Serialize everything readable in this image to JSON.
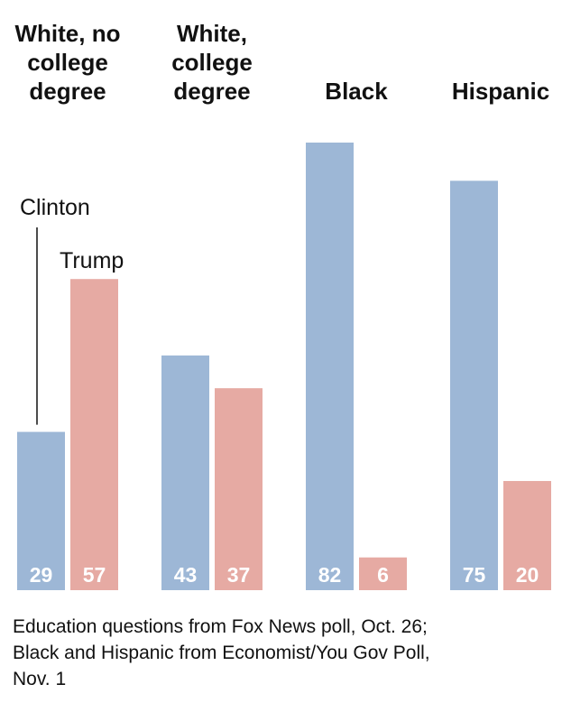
{
  "chart_data": {
    "type": "bar",
    "categories": [
      [
        "White, no",
        "college",
        "degree"
      ],
      [
        "White,",
        "college",
        "degree"
      ],
      [
        "Black"
      ],
      [
        "Hispanic"
      ]
    ],
    "series": [
      {
        "name": "Clinton",
        "color": "#9db7d6",
        "values": [
          29,
          43,
          82,
          75
        ]
      },
      {
        "name": "Trump",
        "color": "#e6aaa3",
        "values": [
          57,
          37,
          6,
          20
        ]
      }
    ],
    "ylim": [
      0,
      82
    ],
    "grid": false,
    "legend": "inline-labels"
  },
  "source_lines": [
    "Education questions from Fox News poll, Oct. 26;",
    "Black and Hispanic from Economist/You Gov Poll,",
    "Nov. 1"
  ]
}
